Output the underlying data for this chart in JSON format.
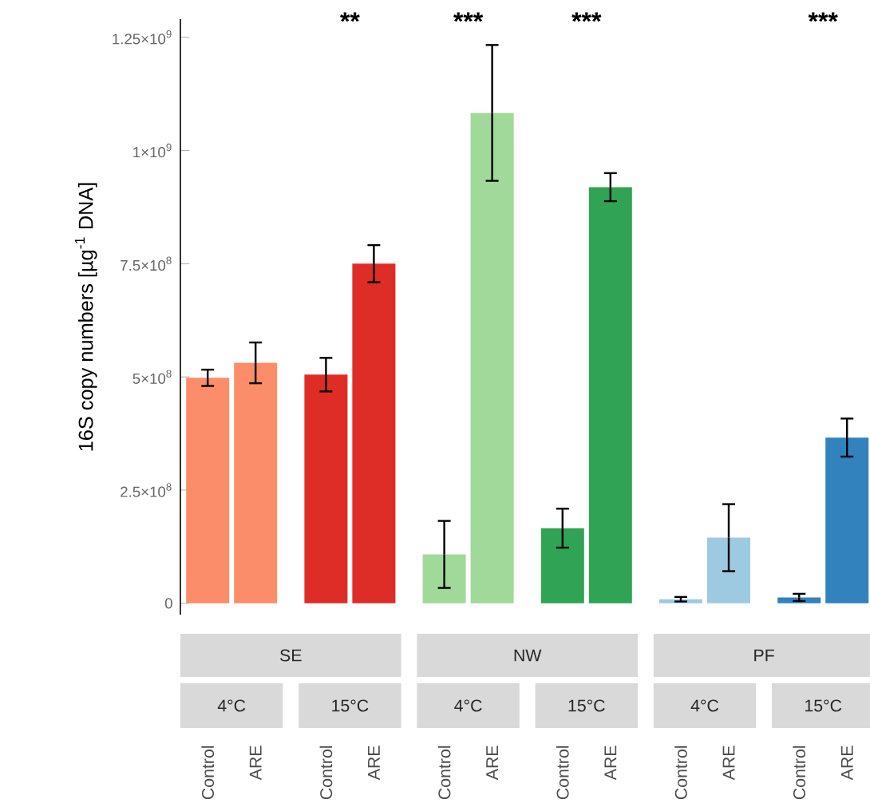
{
  "chart_data": {
    "type": "bar",
    "ylabel": "16S copy numbers [µg$^{-1}$ DNA]",
    "categories": [
      "Control",
      "ARE",
      "Control",
      "ARE",
      "Control",
      "ARE",
      "Control",
      "ARE",
      "Control",
      "ARE",
      "Control",
      "ARE"
    ],
    "values": [
      498000000,
      531000000,
      505000000,
      750000000,
      108000000,
      1083000000,
      166000000,
      919000000,
      9000000,
      145000000,
      13000000,
      366000000
    ],
    "errors": [
      18000000,
      45000000,
      37000000,
      41000000,
      74000000,
      150000000,
      43000000,
      31000000,
      5000000,
      74000000,
      8000000,
      42000000
    ],
    "colors": [
      "#fc8d6a",
      "#fc8d6a",
      "#de2d26",
      "#de2d26",
      "#a1d99b",
      "#a1d99b",
      "#31a354",
      "#31a354",
      "#9ecae1",
      "#9ecae1",
      "#3182bd",
      "#3182bd"
    ],
    "ylim": [
      -25000000,
      1290000000
    ],
    "yticks": [
      {
        "value": 0,
        "label": "0"
      },
      {
        "value": 250000000,
        "label": "2.5×10$^{8}$"
      },
      {
        "value": 500000000,
        "label": "5×10$^{8}$"
      },
      {
        "value": 750000000,
        "label": "7.5×10$^{8}$"
      },
      {
        "value": 1000000000,
        "label": "1×10$^{9}$"
      },
      {
        "value": 1250000000,
        "label": "1.25×10$^{9}$"
      }
    ],
    "annotations": [
      "**",
      "***",
      "***",
      "***",
      "SE",
      "NW",
      "PF",
      "4°C",
      "15°C",
      "4°C",
      "15°C",
      "4°C",
      "15°C"
    ],
    "grid": false
  }
}
